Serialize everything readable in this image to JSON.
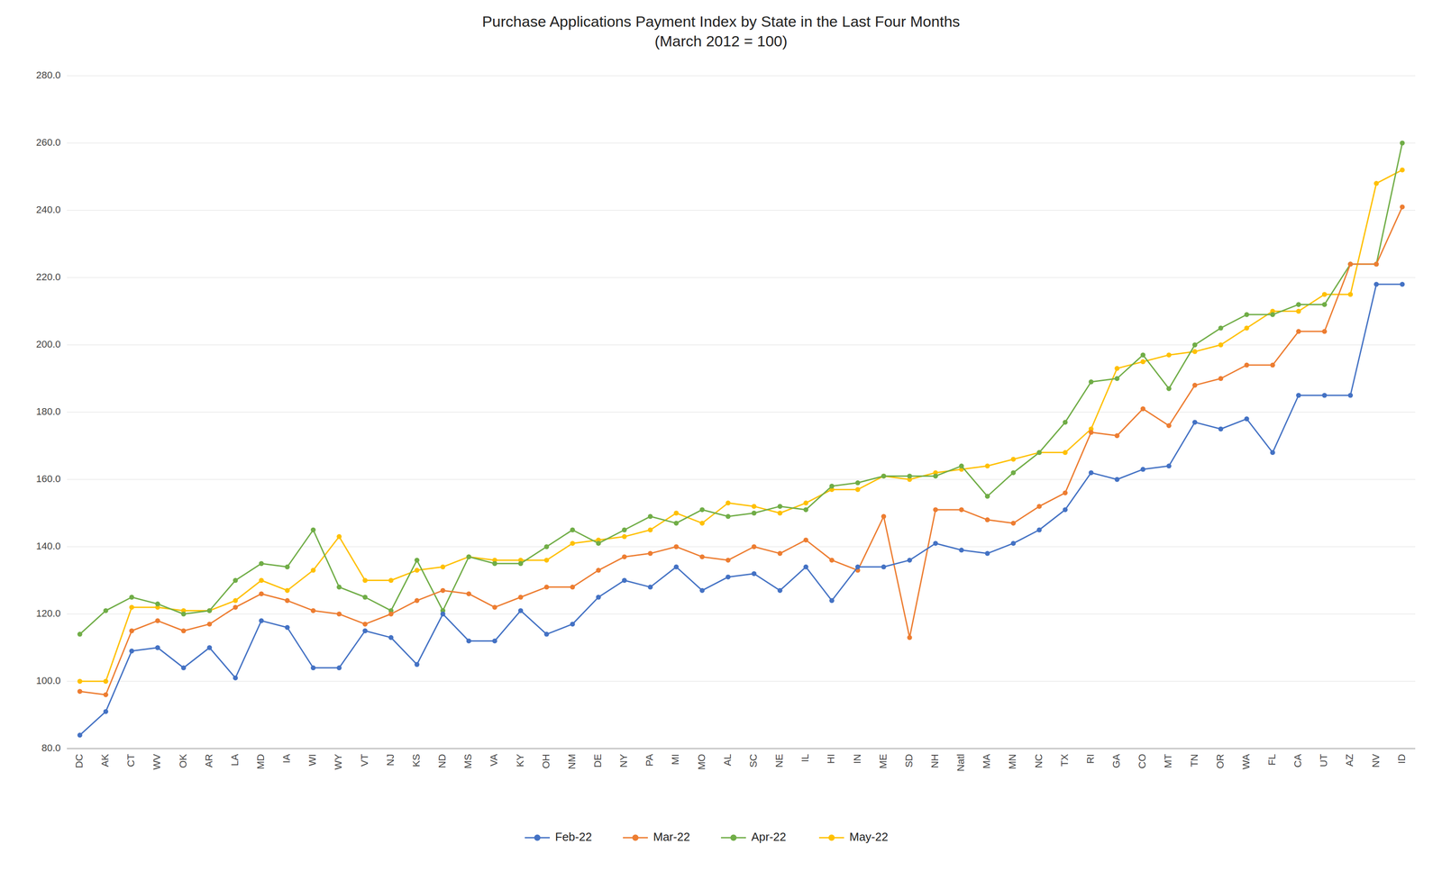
{
  "chart_data": {
    "type": "line",
    "title": "Purchase Applications Payment Index by State in the Last Four Months\n(March 2012 = 100)",
    "categories": [
      "DC",
      "AK",
      "CT",
      "WV",
      "OK",
      "AR",
      "LA",
      "MD",
      "IA",
      "WI",
      "WY",
      "VT",
      "NJ",
      "KS",
      "ND",
      "MS",
      "VA",
      "KY",
      "OH",
      "NM",
      "DE",
      "NY",
      "PA",
      "MI",
      "MO",
      "AL",
      "SC",
      "NE",
      "IL",
      "HI",
      "IN",
      "ME",
      "SD",
      "NH",
      "Natl",
      "MA",
      "MN",
      "NC",
      "TX",
      "RI",
      "GA",
      "CO",
      "MT",
      "TN",
      "OR",
      "WA",
      "FL",
      "CA",
      "UT",
      "AZ",
      "NV",
      "ID"
    ],
    "series": [
      {
        "name": "Feb-22",
        "color": "#4472C4",
        "marker": "circle",
        "values": [
          84,
          91,
          109,
          110,
          104,
          110,
          101,
          118,
          116,
          104,
          104,
          115,
          113,
          105,
          120,
          112,
          112,
          121,
          114,
          117,
          125,
          130,
          128,
          134,
          127,
          131,
          132,
          127,
          134,
          124,
          134,
          134,
          136,
          141,
          139,
          138,
          141,
          145,
          151,
          162,
          160,
          163,
          164,
          177,
          175,
          178,
          168,
          185,
          185,
          185,
          218,
          218
        ]
      },
      {
        "name": "Mar-22",
        "color": "#ED7D31",
        "marker": "circle",
        "values": [
          97,
          96,
          115,
          118,
          115,
          117,
          122,
          126,
          124,
          121,
          120,
          117,
          120,
          124,
          127,
          126,
          122,
          125,
          128,
          128,
          133,
          137,
          138,
          140,
          137,
          136,
          140,
          138,
          142,
          136,
          133,
          149,
          113,
          151,
          151,
          148,
          147,
          152,
          156,
          174,
          173,
          181,
          176,
          188,
          190,
          194,
          194,
          204,
          204,
          224,
          224,
          241
        ]
      },
      {
        "name": "Apr-22",
        "color": "#70AD47",
        "marker": "circle",
        "values": [
          114,
          121,
          125,
          123,
          120,
          121,
          130,
          135,
          134,
          145,
          128,
          125,
          121,
          136,
          121,
          137,
          135,
          135,
          140,
          145,
          141,
          145,
          149,
          147,
          151,
          149,
          150,
          152,
          151,
          158,
          159,
          161,
          161,
          161,
          164,
          155,
          162,
          168,
          177,
          189,
          190,
          197,
          187,
          200,
          205,
          209,
          209,
          212,
          212,
          224,
          224,
          260
        ]
      },
      {
        "name": "May-22",
        "color": "#FFC000",
        "marker": "circle",
        "values": [
          100,
          100,
          122,
          122,
          121,
          121,
          124,
          130,
          127,
          133,
          143,
          130,
          130,
          133,
          134,
          137,
          136,
          136,
          136,
          141,
          142,
          143,
          145,
          150,
          147,
          153,
          152,
          150,
          153,
          157,
          157,
          161,
          160,
          162,
          163,
          164,
          166,
          168,
          168,
          175,
          193,
          195,
          197,
          198,
          200,
          205,
          210,
          210,
          215,
          215,
          248,
          252
        ]
      }
    ],
    "ylim": [
      80.0,
      280.0
    ],
    "yticks": [
      {
        "value": 80.0,
        "label": "80.0"
      },
      {
        "value": 100.0,
        "label": "100.0"
      },
      {
        "value": 120.0,
        "label": "120.0"
      },
      {
        "value": 140.0,
        "label": "140.0"
      },
      {
        "value": 160.0,
        "label": "160.0"
      },
      {
        "value": 180.0,
        "label": "180.0"
      },
      {
        "value": 200.0,
        "label": "200.0"
      },
      {
        "value": 220.0,
        "label": "220.0"
      },
      {
        "value": 240.0,
        "label": "240.0"
      },
      {
        "value": 260.0,
        "label": "260.0"
      },
      {
        "value": 280.0,
        "label": "280.0"
      }
    ],
    "grid": true,
    "legend": "bottom"
  }
}
